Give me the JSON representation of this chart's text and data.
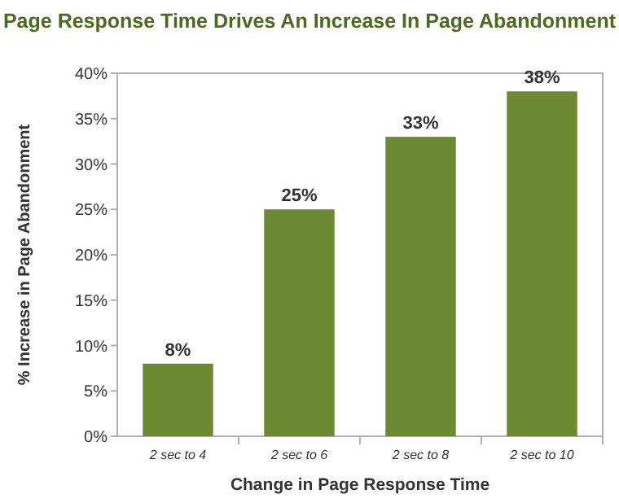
{
  "chart_data": {
    "type": "bar",
    "title": "Page Response Time Drives An Increase In Page Abandonment",
    "xlabel": "Change in Page Response Time",
    "ylabel": "% Increase in Page Abandonment",
    "categories": [
      "2 sec to 4",
      "2 sec to 6",
      "2 sec to 8",
      "2 sec to 10"
    ],
    "values": [
      8,
      25,
      33,
      38
    ],
    "color": "#6b8a32",
    "value_labels": [
      "8%",
      "25%",
      "33%",
      "38%"
    ],
    "ylim": [
      0,
      40
    ],
    "yticks": [
      {
        "value": 0,
        "label": "0%"
      },
      {
        "value": 5,
        "label": "5%"
      },
      {
        "value": 10,
        "label": "10%"
      },
      {
        "value": 15,
        "label": "15%"
      },
      {
        "value": 20,
        "label": "20%"
      },
      {
        "value": 25,
        "label": "25%"
      },
      {
        "value": 30,
        "label": "30%"
      },
      {
        "value": 35,
        "label": "35%"
      },
      {
        "value": 40,
        "label": "40%"
      }
    ],
    "grid": false
  }
}
